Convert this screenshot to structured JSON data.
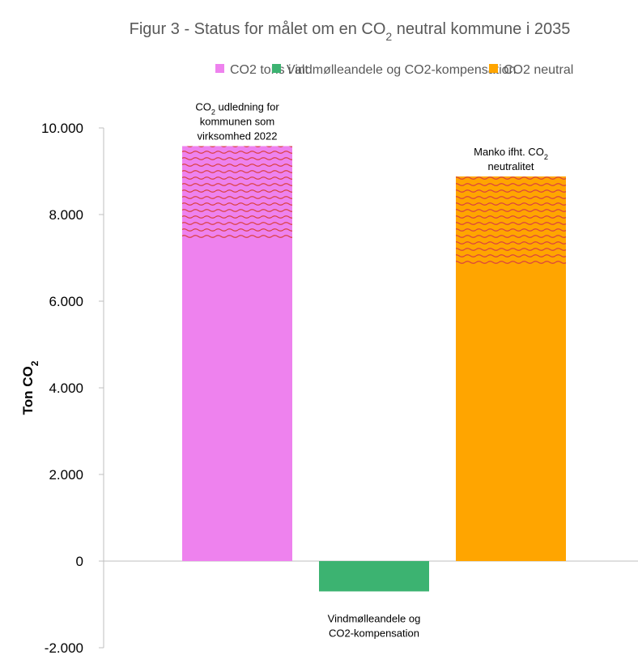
{
  "chart_data": {
    "type": "bar",
    "title": {
      "pre": "Figur 3 - Status for målet om en CO",
      "sub": "2",
      "post": " neutral kommune i 2035"
    },
    "ylabel": {
      "pre": "Ton CO",
      "sub": "2"
    },
    "xlabel": "",
    "ylim": [
      -2000,
      10000
    ],
    "yticks": [
      {
        "value": -2000,
        "label": "-2.000"
      },
      {
        "value": 0,
        "label": "0"
      },
      {
        "value": 2000,
        "label": "2.000"
      },
      {
        "value": 4000,
        "label": "4.000"
      },
      {
        "value": 6000,
        "label": "6.000"
      },
      {
        "value": 8000,
        "label": "8.000"
      },
      {
        "value": 10000,
        "label": "10.000"
      }
    ],
    "grid": false,
    "legend_position": "top",
    "series": [
      {
        "name": "CO2 tons i alt",
        "color": "#EE82EE",
        "values": [
          9580,
          null,
          null
        ],
        "hatch_from": 7400,
        "annotation": [
          {
            "pre": "CO",
            "sub": "2",
            "post": " udledning for"
          },
          {
            "pre": "kommunen som"
          },
          {
            "pre": "virksomhed 2022"
          }
        ],
        "annotation_position": "above"
      },
      {
        "name": "Vindmølleandele og CO2-kompensation",
        "color": "#3CB371",
        "values": [
          null,
          -700,
          null
        ],
        "annotation": [
          {
            "pre": "Vindmølleandele og"
          },
          {
            "pre": "CO2-kompensation"
          }
        ],
        "annotation_position": "below"
      },
      {
        "name": "CO2 neutral",
        "color": "#FFA500",
        "values": [
          null,
          null,
          8880
        ],
        "hatch_from": 6800,
        "annotation": [
          {
            "pre": "Manko ifht. CO",
            "sub": "2"
          },
          {
            "pre": "neutralitet"
          }
        ],
        "annotation_position": "above"
      }
    ],
    "hatch_color": "#D94040"
  }
}
